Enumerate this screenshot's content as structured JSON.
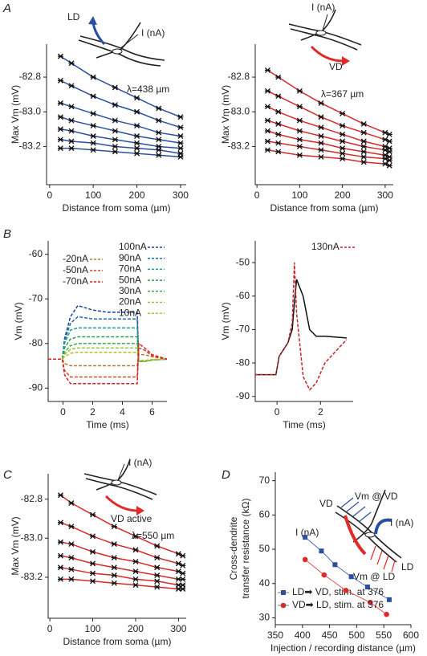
{
  "panel_labels": [
    "A",
    "B",
    "C",
    "D"
  ],
  "chart_data": [
    {
      "type": "line",
      "x_label": "Distance from soma (µm)",
      "y_label": "Max Vm (mV)",
      "annotations": [
        "λ=438 µm",
        "LD",
        "I (nA)"
      ],
      "xlim": [
        -7,
        313
      ],
      "xticks": [
        0,
        100,
        200,
        300
      ],
      "ylim": [
        -83.42,
        -82.61
      ],
      "yticks": [
        -82.8,
        {
          "value": -83,
          "label": "-83.0"
        },
        -83.2
      ],
      "marker": "x",
      "marker_color": "#111",
      "x": [
        25,
        50,
        100,
        150,
        200,
        250,
        300
      ],
      "series": [
        {
          "color": "#2b4fa0",
          "values": [
            -82.68,
            -82.72,
            -82.8,
            -82.86,
            -82.92,
            -82.98,
            -83.03
          ]
        },
        {
          "color": "#2b4fa0",
          "values": [
            -82.82,
            -82.85,
            -82.91,
            -82.96,
            -83.0,
            -83.05,
            -83.09
          ]
        },
        {
          "color": "#2b4fa0",
          "values": [
            -82.95,
            -82.97,
            -83.01,
            -83.05,
            -83.08,
            -83.12,
            -83.14
          ]
        },
        {
          "color": "#2b4fa0",
          "values": [
            -83.03,
            -83.05,
            -83.08,
            -83.11,
            -83.14,
            -83.16,
            -83.18
          ]
        },
        {
          "color": "#2b4fa0",
          "values": [
            -83.1,
            -83.11,
            -83.14,
            -83.16,
            -83.18,
            -83.2,
            -83.21
          ]
        },
        {
          "color": "#2b4fa0",
          "values": [
            -83.16,
            -83.17,
            -83.18,
            -83.2,
            -83.21,
            -83.22,
            -83.24
          ]
        },
        {
          "color": "#2b4fa0",
          "values": [
            -83.21,
            -83.21,
            -83.22,
            -83.23,
            -83.24,
            -83.25,
            -83.26
          ]
        }
      ]
    },
    {
      "type": "line",
      "x_label": "Distance from soma (µm)",
      "y_label": "Max Vm (mV)",
      "annotations": [
        "λ=367 µm",
        "I (nA)",
        "VD"
      ],
      "xlim": [
        -4,
        319
      ],
      "xticks": [
        0,
        100,
        200,
        300
      ],
      "ylim": [
        -83.42,
        -82.61
      ],
      "yticks": [
        -82.8,
        {
          "value": -83,
          "label": "-83.0"
        },
        -83.2
      ],
      "marker": "x",
      "marker_color": "#111",
      "x": [
        25,
        50,
        100,
        150,
        200,
        250,
        300,
        310
      ],
      "series": [
        {
          "color": "#d42a2a",
          "values": [
            -82.76,
            -82.8,
            -82.88,
            -82.95,
            -83.01,
            -83.07,
            -83.12,
            -83.13
          ]
        },
        {
          "color": "#d42a2a",
          "values": [
            -82.88,
            -82.91,
            -82.97,
            -83.03,
            -83.08,
            -83.12,
            -83.16,
            -83.17
          ]
        },
        {
          "color": "#d42a2a",
          "values": [
            -82.97,
            -83.0,
            -83.05,
            -83.09,
            -83.13,
            -83.17,
            -83.2,
            -83.21
          ]
        },
        {
          "color": "#d42a2a",
          "values": [
            -83.05,
            -83.07,
            -83.11,
            -83.14,
            -83.17,
            -83.2,
            -83.22,
            -83.23
          ]
        },
        {
          "color": "#d42a2a",
          "values": [
            -83.11,
            -83.13,
            -83.16,
            -83.18,
            -83.21,
            -83.23,
            -83.25,
            -83.26
          ]
        },
        {
          "color": "#d42a2a",
          "values": [
            -83.17,
            -83.18,
            -83.2,
            -83.22,
            -83.24,
            -83.26,
            -83.27,
            -83.28
          ]
        },
        {
          "color": "#d42a2a",
          "values": [
            -83.22,
            -83.23,
            -83.25,
            -83.26,
            -83.27,
            -83.29,
            -83.3,
            -83.31
          ]
        }
      ]
    },
    {
      "type": "line",
      "x_label": "Time (ms)",
      "y_label": "Vm (mV)",
      "xlim": [
        -1,
        7
      ],
      "xticks": [
        0,
        2,
        4,
        6
      ],
      "ylim": [
        -93,
        -57
      ],
      "yticks": [
        -60,
        -70,
        -80,
        -90
      ],
      "dash": true,
      "x": [
        -1,
        -0.05,
        0.1,
        0.5,
        1,
        2,
        3,
        4,
        5,
        5.1,
        5.5,
        6,
        7
      ],
      "series": [
        {
          "name": "100nA",
          "color": "#1f3f9f",
          "values": [
            -83.5,
            -83.5,
            -79,
            -74,
            -71.5,
            -72.5,
            -73,
            -73,
            -73,
            -84,
            -84,
            -83.7,
            -83.5
          ]
        },
        {
          "name": "90nA",
          "color": "#1f6fae",
          "values": [
            -83.5,
            -83.5,
            -79.5,
            -75.5,
            -74,
            -74.5,
            -74.5,
            -74.5,
            -74.5,
            -84,
            -84,
            -83.7,
            -83.5
          ]
        },
        {
          "name": "70nA",
          "color": "#1f9a9a",
          "values": [
            -83.5,
            -83.5,
            -80,
            -77,
            -76.5,
            -76.5,
            -76.5,
            -76.5,
            -76.5,
            -84,
            -84,
            -83.7,
            -83.5
          ]
        },
        {
          "name": "50nA",
          "color": "#2a9f4f",
          "values": [
            -83.5,
            -83.5,
            -81,
            -79,
            -78.5,
            -78.5,
            -78.5,
            -78.5,
            -78.5,
            -84,
            -84,
            -83.7,
            -83.5
          ]
        },
        {
          "name": "30nA",
          "color": "#3fae3f",
          "values": [
            -83.5,
            -83.5,
            -82,
            -80.5,
            -80,
            -80,
            -80,
            -80,
            -80,
            -84,
            -84,
            -83.7,
            -83.5
          ]
        },
        {
          "name": "20nA",
          "color": "#8cc63f",
          "values": [
            -83.5,
            -83.5,
            -82.5,
            -81.3,
            -81,
            -81,
            -81,
            -81,
            -81,
            -84,
            -84,
            -83.7,
            -83.5
          ]
        },
        {
          "name": "10nA",
          "color": "#c9b52f",
          "values": [
            -83.5,
            -83.5,
            -83,
            -82.2,
            -82,
            -82,
            -82,
            -82,
            -82,
            -83.8,
            -83.8,
            -83.6,
            -83.5
          ]
        },
        {
          "name": "-20nA",
          "color": "#b87a3a",
          "values": [
            -83.5,
            -83.5,
            -84.5,
            -85,
            -85,
            -85,
            -85,
            -85,
            -85,
            -82.5,
            -82.5,
            -83,
            -83.5
          ]
        },
        {
          "name": "-50nA",
          "color": "#d04a2a",
          "values": [
            -83.5,
            -83.5,
            -86,
            -87.5,
            -87.5,
            -87.5,
            -87.5,
            -87.5,
            -87.5,
            -81,
            -81.5,
            -82.8,
            -83.5
          ]
        },
        {
          "name": "-70nA",
          "color": "#d42020",
          "values": [
            -83.5,
            -83.5,
            -87,
            -89,
            -89,
            -89,
            -89,
            -89,
            -89,
            -80,
            -81,
            -82.5,
            -83.5
          ]
        }
      ]
    },
    {
      "type": "line",
      "x_label": "Time (ms)",
      "y_label": "Vm (mV)",
      "xlim": [
        -1,
        3.5
      ],
      "xticks": [
        0,
        2
      ],
      "ylim": [
        -91.5,
        -43.5
      ],
      "yticks": [
        -50,
        -60,
        -70,
        -80,
        -90
      ],
      "x": [
        -1,
        -0.05,
        0.1,
        0.5,
        0.7,
        0.8,
        0.9,
        1.2,
        1.5,
        1.8,
        2.2,
        3.2
      ],
      "series": [
        {
          "color": "#111111",
          "values": [
            -83.5,
            -83.5,
            -78,
            -74,
            -70,
            -62,
            -55,
            -60,
            -70,
            -72,
            -72,
            -72.5
          ]
        },
        {
          "name": "130nA",
          "color": "#c0272d",
          "dash": true,
          "values": [
            -83.5,
            -83.5,
            -78,
            -74,
            -68,
            -50,
            -65,
            -84,
            -88,
            -86,
            -80,
            -73
          ]
        }
      ]
    },
    {
      "type": "line",
      "x_label": "Distance from soma (µm)",
      "y_label": "Max Vm (mV)",
      "annotations": [
        "λ=550 µm",
        "I (nA)",
        "VD active"
      ],
      "xlim": [
        -4,
        318
      ],
      "xticks": [
        0,
        100,
        200,
        300
      ],
      "ylim": [
        -83.41,
        -82.67
      ],
      "yticks": [
        -82.8,
        {
          "value": -83,
          "label": "-83.0"
        },
        -83.2
      ],
      "marker": "x",
      "marker_color": "#111",
      "x": [
        25,
        50,
        100,
        150,
        200,
        250,
        300,
        310
      ],
      "series": [
        {
          "color": "#d42a2a",
          "values": [
            -82.78,
            -82.82,
            -82.88,
            -82.94,
            -82.99,
            -83.04,
            -83.08,
            -83.09
          ]
        },
        {
          "color": "#d42a2a",
          "values": [
            -82.92,
            -82.94,
            -82.99,
            -83.03,
            -83.06,
            -83.1,
            -83.13,
            -83.14
          ]
        },
        {
          "color": "#d42a2a",
          "values": [
            -83.02,
            -83.03,
            -83.07,
            -83.1,
            -83.12,
            -83.15,
            -83.17,
            -83.18
          ]
        },
        {
          "color": "#d42a2a",
          "values": [
            -83.09,
            -83.1,
            -83.13,
            -83.15,
            -83.17,
            -83.19,
            -83.21,
            -83.21
          ]
        },
        {
          "color": "#d42a2a",
          "values": [
            -83.15,
            -83.16,
            -83.18,
            -83.19,
            -83.21,
            -83.22,
            -83.24,
            -83.24
          ]
        },
        {
          "color": "#d42a2a",
          "values": [
            -83.21,
            -83.21,
            -83.22,
            -83.23,
            -83.24,
            -83.25,
            -83.26,
            -83.26
          ]
        }
      ]
    },
    {
      "type": "line",
      "x_label": "Injection / recording distance (µm)",
      "y_label": [
        "Cross-dendrite",
        "transfer resistance (kΩ)"
      ],
      "annotations": [
        "VD",
        "Vm @ VD",
        "I (nA)",
        "I (nA)",
        "LD",
        "Vm @ LD"
      ],
      "xlim": [
        350,
        600
      ],
      "xticks": [
        350,
        400,
        450,
        500,
        550,
        600
      ],
      "ylim": [
        28,
        72.5
      ],
      "yticks": [
        30,
        40,
        50,
        60,
        70
      ],
      "series": [
        {
          "name": "LD➡ VD, stim. at 376",
          "color": "#2b4fa0",
          "marker": "square",
          "x": [
            405,
            435,
            460,
            490,
            520,
            560
          ],
          "values": [
            53.5,
            49.5,
            45.5,
            42,
            39,
            35.3
          ]
        },
        {
          "name": "VD➡ LD, stim. at 376",
          "color": "#e02a2a",
          "marker": "circle",
          "x": [
            405,
            440,
            480,
            525,
            555
          ],
          "values": [
            47,
            42.5,
            38,
            34.5,
            31
          ]
        }
      ]
    }
  ]
}
